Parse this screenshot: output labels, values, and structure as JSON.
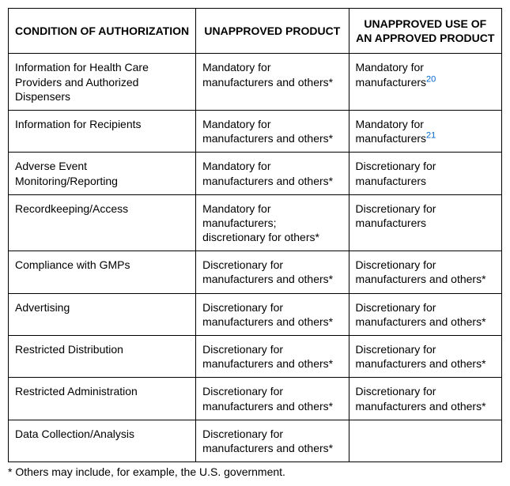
{
  "table": {
    "headers": [
      "CONDITION OF AUTHORIZATION",
      "UNAPPROVED PRODUCT",
      "UNAPPROVED USE OF AN APPROVED PRODUCT"
    ],
    "rows": [
      {
        "condition": "Information for Health Care Providers and Authorized Dispensers",
        "unapproved": "Mandatory for manufacturers and others*",
        "approved": "Mandatory for manufacturers",
        "approved_sup": "20"
      },
      {
        "condition": "Information for Recipients",
        "unapproved": "Mandatory for manufacturers and others*",
        "approved": "Mandatory for manufacturers",
        "approved_sup": "21"
      },
      {
        "condition": "Adverse Event Monitoring/Reporting",
        "unapproved": "Mandatory for manufacturers and others*",
        "approved": "Discretionary for manufacturers"
      },
      {
        "condition": "Recordkeeping/Access",
        "unapproved": "Mandatory for manufacturers; discretionary for others*",
        "approved": "Discretionary for manufacturers"
      },
      {
        "condition": "Compliance with GMPs",
        "unapproved": "Discretionary for manufacturers and others*",
        "approved": "Discretionary for manufacturers and others*"
      },
      {
        "condition": "Advertising",
        "unapproved": "Discretionary for manufacturers and others*",
        "approved": "Discretionary for manufacturers and others*"
      },
      {
        "condition": "Restricted Distribution",
        "unapproved": "Discretionary for manufacturers and others*",
        "approved": "Discretionary for manufacturers and others*"
      },
      {
        "condition": "Restricted Administration",
        "unapproved": "Discretionary for manufacturers and others*",
        "approved": "Discretionary for manufacturers and others*"
      },
      {
        "condition": "Data Collection/Analysis",
        "unapproved": "Discretionary for manufacturers and others*",
        "approved": ""
      }
    ]
  },
  "footnote": "* Others may include, for example, the U.S. government."
}
